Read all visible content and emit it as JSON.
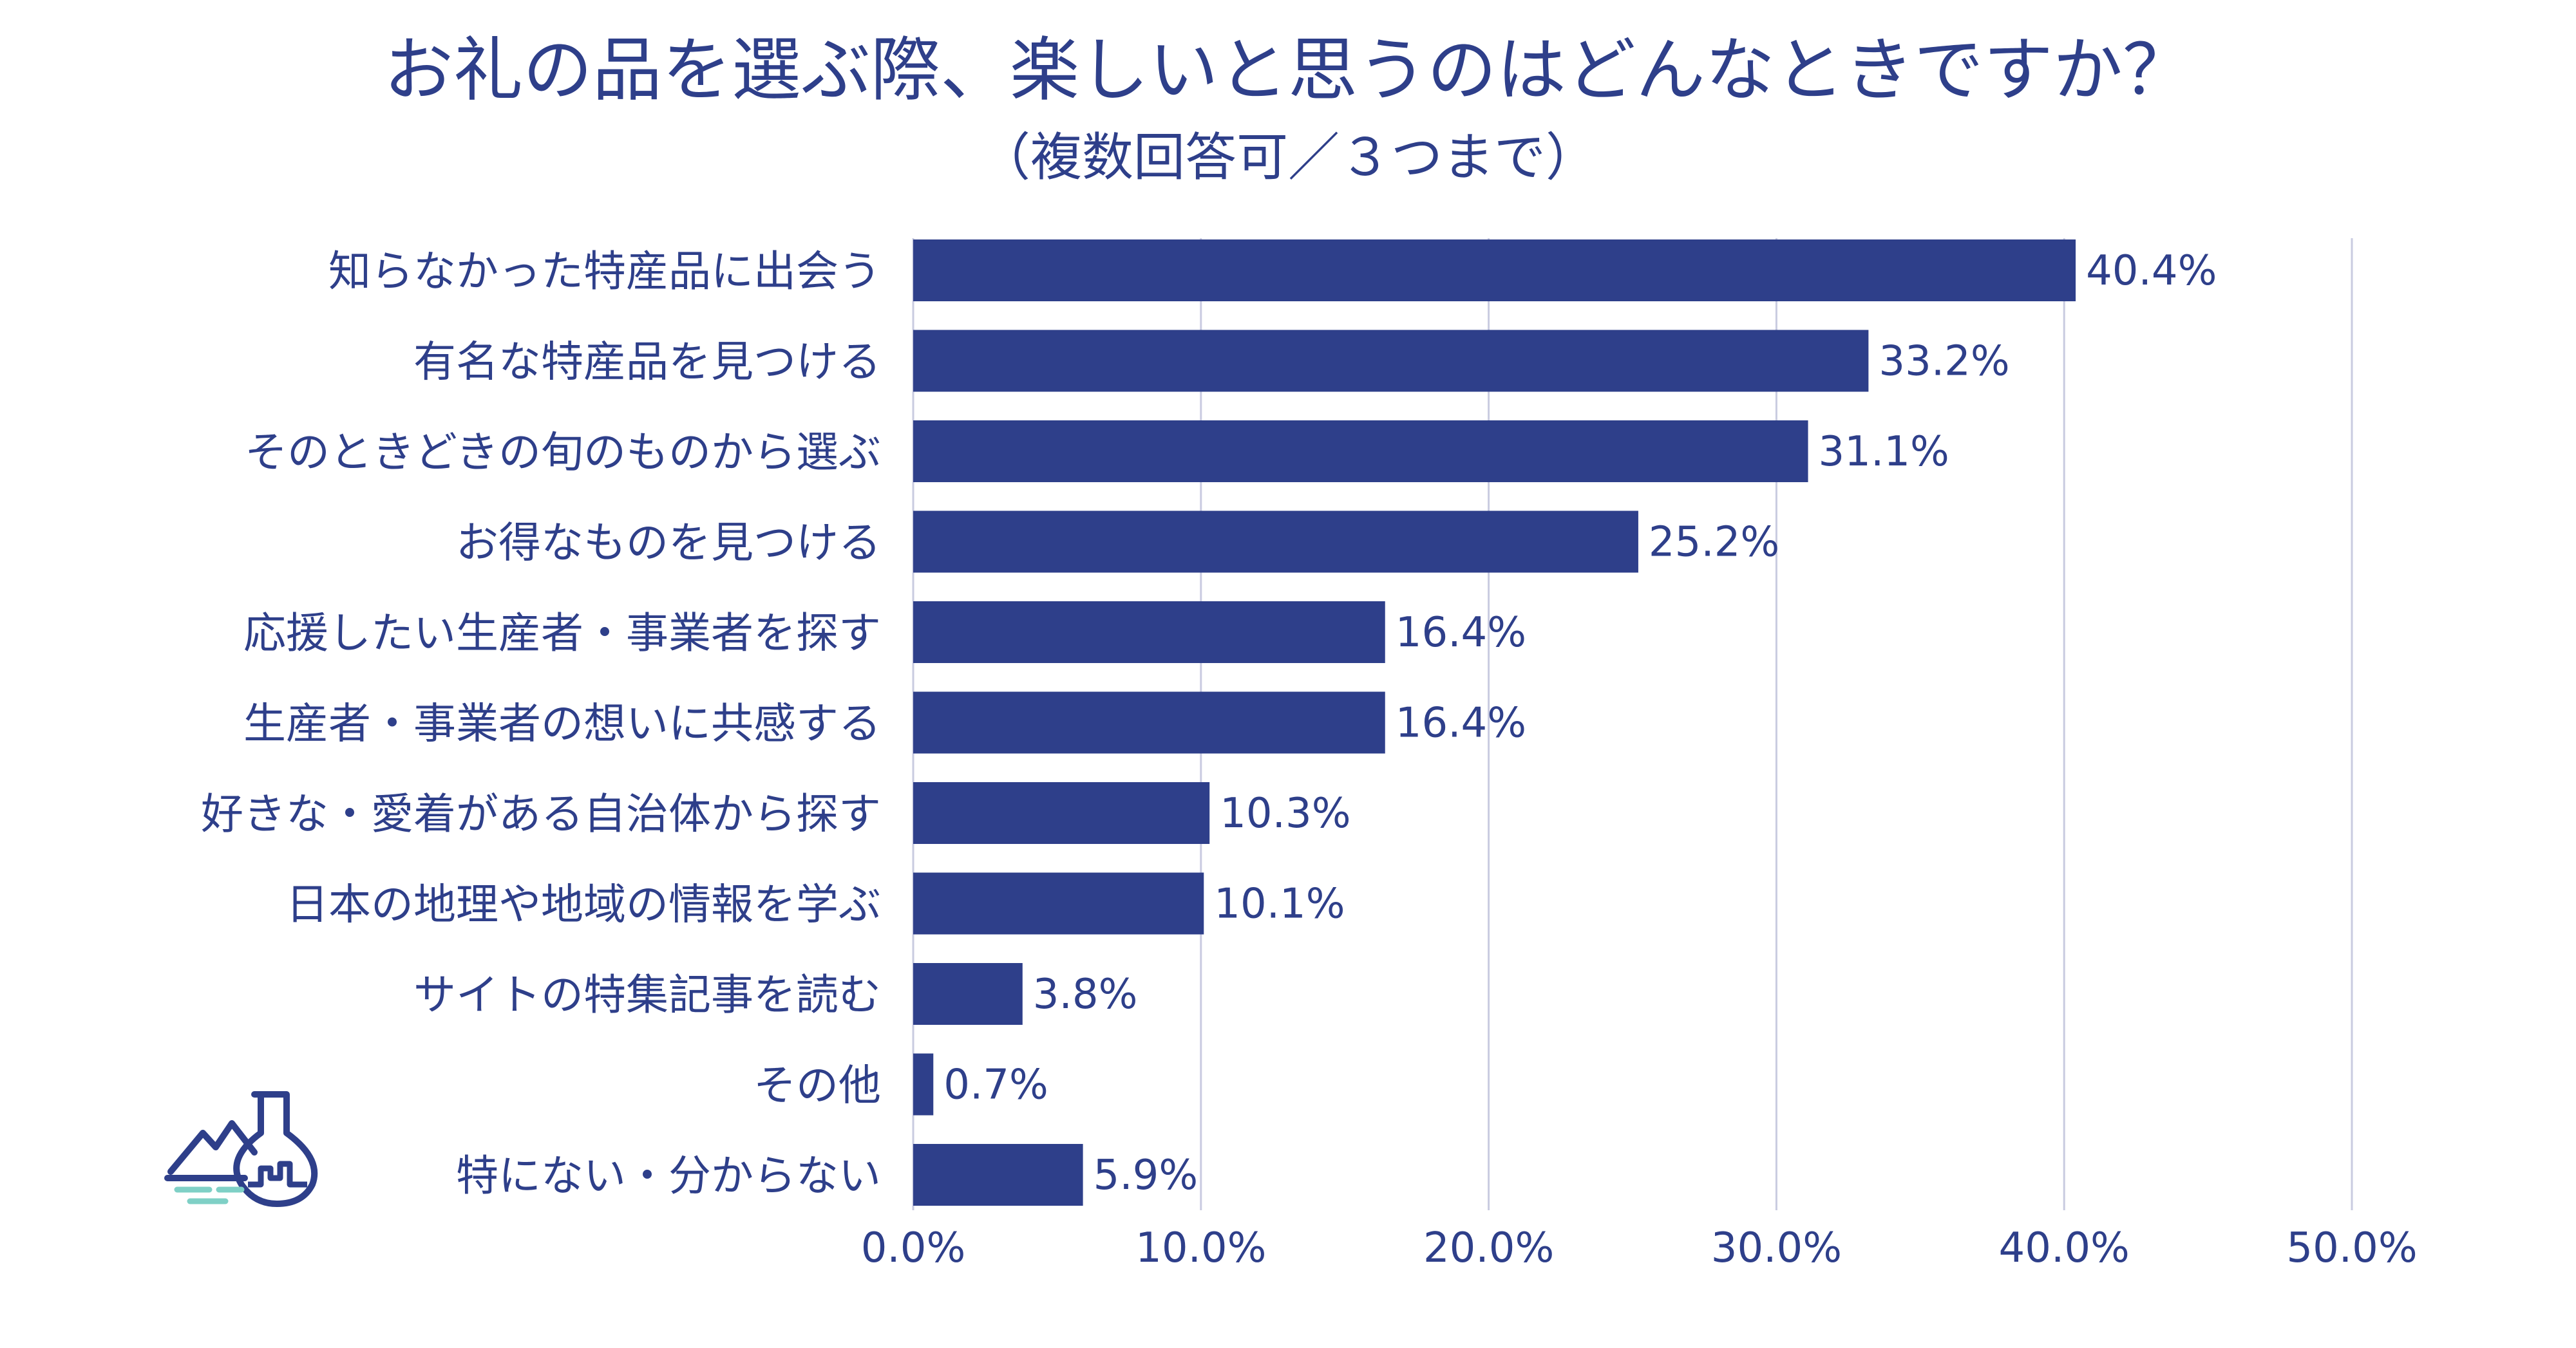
{
  "chart_data": {
    "type": "bar",
    "orientation": "horizontal",
    "title": "お礼の品を選ぶ際、楽しいと思うのはどんなときですか？",
    "subtitle": "（複数回答可／３つまで）",
    "categories": [
      "知らなかった特産品に出会う",
      "有名な特産品を見つける",
      "そのときどきの旬のものから選ぶ",
      "お得なものを見つける",
      "応援したい生産者・事業者を探す",
      "生産者・事業者の想いに共感する",
      "好きな・愛着がある自治体から探す",
      "日本の地理や地域の情報を学ぶ",
      "サイトの特集記事を読む",
      "その他",
      "特にない・分からない"
    ],
    "values": [
      40.4,
      33.2,
      31.1,
      25.2,
      16.4,
      16.4,
      10.3,
      10.1,
      3.8,
      0.7,
      5.9
    ],
    "value_labels": [
      "40.4%",
      "33.2%",
      "31.1%",
      "25.2%",
      "16.4%",
      "16.4%",
      "10.3%",
      "10.1%",
      "3.8%",
      "0.7%",
      "5.9%"
    ],
    "xlim": [
      0,
      50
    ],
    "xticks": [
      "0.0%",
      "10.0%",
      "20.0%",
      "30.0%",
      "40.0%",
      "50.0%"
    ],
    "grid": "vertical",
    "legend": "none",
    "bar_color": "#2e3f8a",
    "grid_color": "#c9cbe0"
  },
  "colors": {
    "text": "#2e3f8a",
    "logo_accent": "#7fd0c6"
  },
  "logo": {
    "icon": "flask-mountain-logo-icon"
  }
}
